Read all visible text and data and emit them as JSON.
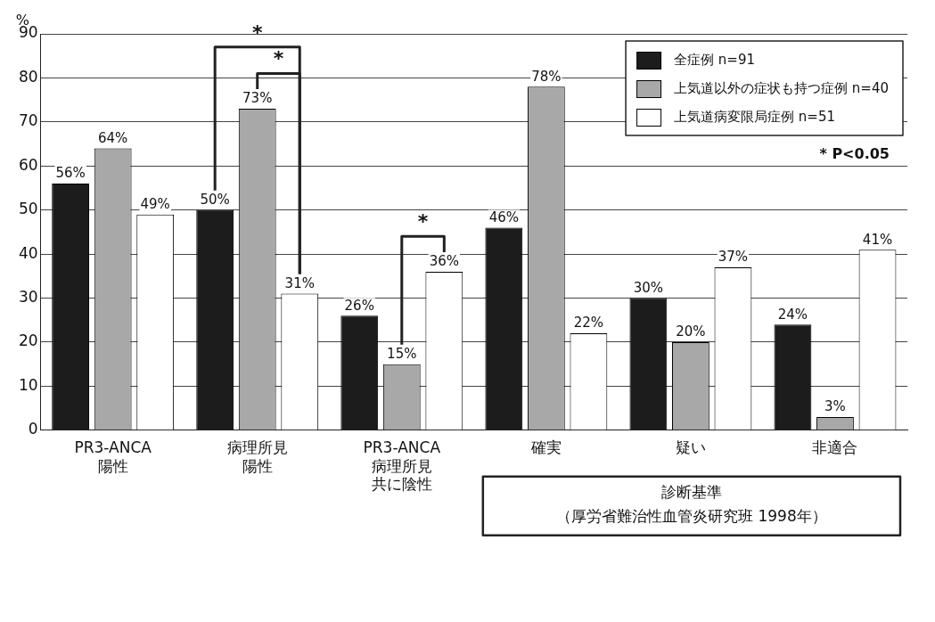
{
  "chart_data": {
    "type": "bar",
    "ylabel": "%",
    "categories": [
      "PR3-ANCA陽性",
      "病理所見陽性",
      "PR3-ANCA病理所見共に陰性",
      "確実",
      "疑い",
      "非適合"
    ],
    "series": [
      {
        "name": "全症例 n=91",
        "color": "#1c1c1c",
        "values": [
          56,
          50,
          26,
          46,
          30,
          24
        ],
        "value_labels": [
          "56%",
          "50%",
          "26%",
          "46%",
          "30%",
          "24%"
        ]
      },
      {
        "name": "上気道以外の症状も持つ症例 n=40",
        "color": "#a8a8a8",
        "values": [
          64,
          73,
          15,
          78,
          20,
          3
        ],
        "value_labels": [
          "64%",
          "73%",
          "15%",
          "78%",
          "20%",
          "3%"
        ]
      },
      {
        "name": "上気道病変限局症例 n=51",
        "color": "#ffffff",
        "values": [
          49,
          31,
          36,
          22,
          37,
          41
        ],
        "value_labels": [
          "49%",
          "31%",
          "36%",
          "22%",
          "37%",
          "41%"
        ]
      }
    ],
    "ylim": [
      0,
      90
    ],
    "yticks": [
      0,
      10,
      20,
      30,
      40,
      50,
      60,
      70,
      80,
      90
    ],
    "grid": "y",
    "legend": "top right",
    "annotations": [
      "*",
      "*",
      "*",
      "* P<0.05",
      "診断基準（厚労省難治性血管炎研究班 1998年）"
    ]
  }
}
